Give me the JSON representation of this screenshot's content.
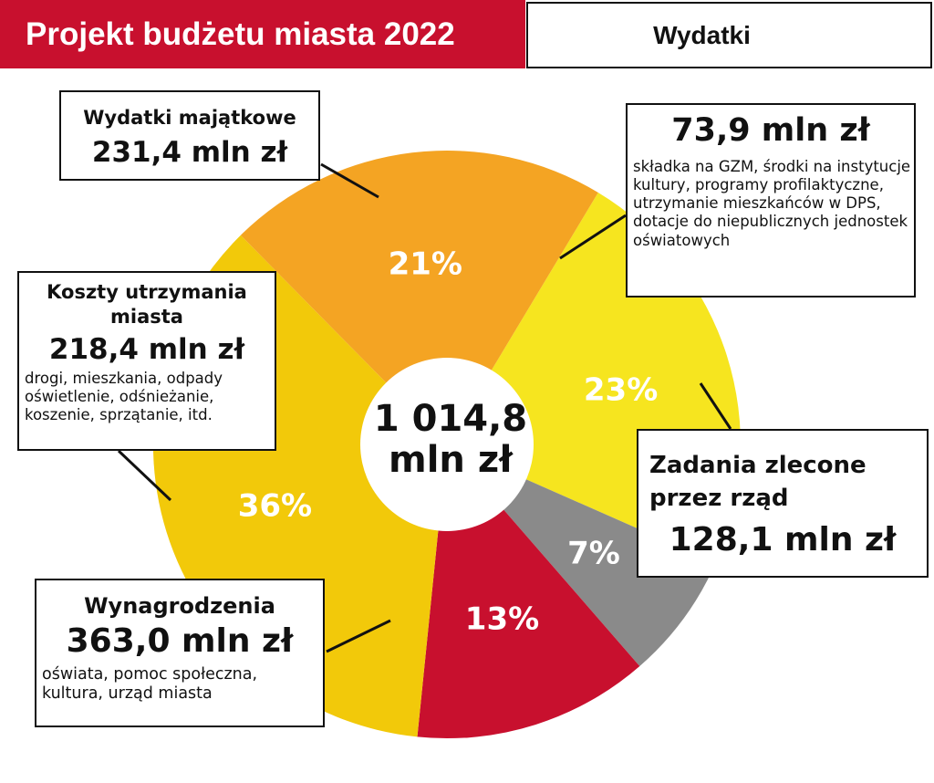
{
  "header": {
    "title": "Projekt budżetu miasta 2022",
    "tab": "Wydatki"
  },
  "chart_data": {
    "type": "pie",
    "title": "Projekt budżetu miasta 2022",
    "subtitle": "Wydatki",
    "total": {
      "line1": "1 014,8",
      "line2": "mln zł"
    },
    "slices": [
      {
        "key": "majatkowe",
        "percent": 23,
        "label": "23%",
        "value": 231.4,
        "color": "#f6e51f"
      },
      {
        "key": "pozostale",
        "percent": 7,
        "label": "7%",
        "value": 73.9,
        "color": "#8a8a8a"
      },
      {
        "key": "zlecone",
        "percent": 13,
        "label": "13%",
        "value": 128.1,
        "color": "#c8102e"
      },
      {
        "key": "wynagrodzenia",
        "percent": 36,
        "label": "36%",
        "value": 363.0,
        "color": "#f2c90a"
      },
      {
        "key": "utrzymania",
        "percent": 21,
        "label": "21%",
        "value": 218.4,
        "color": "#f4a423"
      }
    ]
  },
  "callouts": {
    "majatkowe": {
      "category": "Wydatki majątkowe",
      "amount": "231,4 mln zł"
    },
    "utrzymania": {
      "category": "Koszty utrzymania miasta",
      "amount": "218,4 mln zł",
      "description": "drogi, mieszkania, odpady oświetlenie, odśnieżanie, koszenie, sprzątanie, itd."
    },
    "wynagrodzenia": {
      "category": "Wynagrodzenia",
      "amount": "363,0 mln zł",
      "description": "oświata, pomoc społeczna, kultura, urząd miasta"
    },
    "zlecone": {
      "category": "Zadania zlecone przez rząd",
      "amount": "128,1 mln zł"
    },
    "pozostale": {
      "amount": "73,9 mln zł",
      "description": "składka na GZM, środki na instytucje kultury, programy profilaktyczne, utrzymanie mieszkańców w DPS, dotacje do niepublicznych jednostek oświatowych"
    }
  }
}
